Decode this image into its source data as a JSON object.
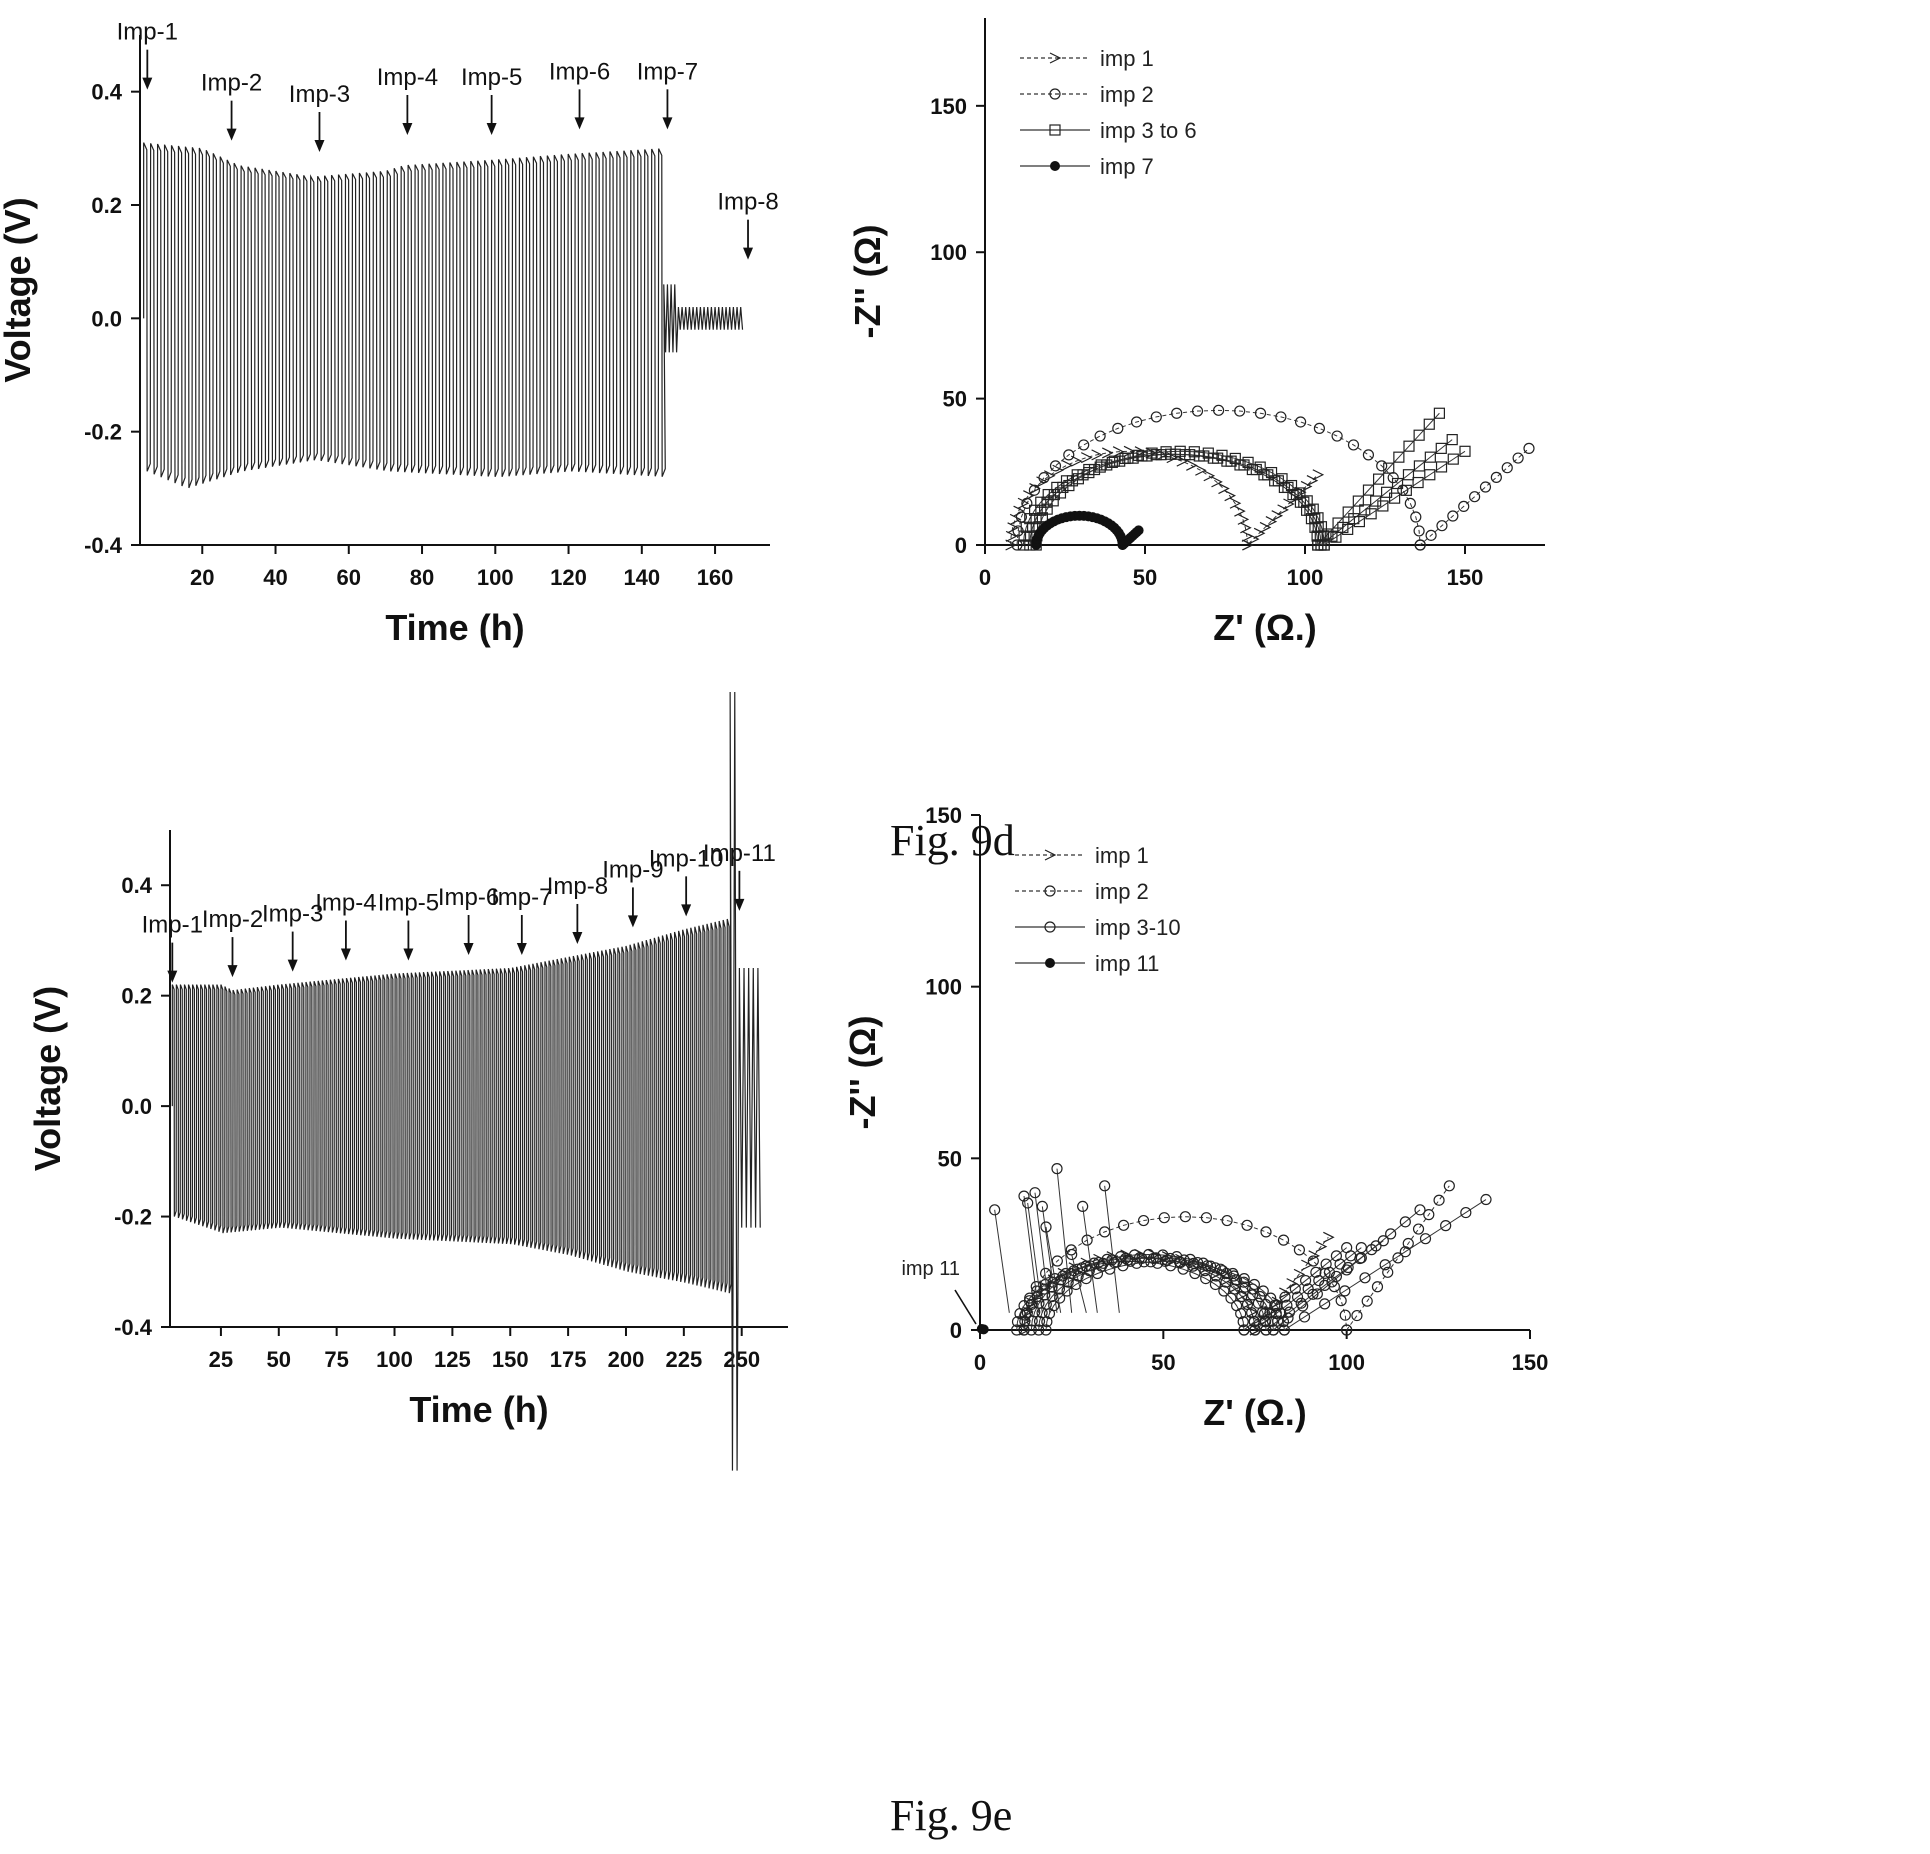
{
  "figures": [
    {
      "label": "Fig. 9d"
    },
    {
      "label": "Fig. 9e"
    }
  ],
  "chart_data": [
    {
      "id": "p9d_volt",
      "type": "line",
      "xlabel": "Time (h)",
      "ylabel": "Voltage (V)",
      "xlim": [
        3,
        175
      ],
      "ylim": [
        -0.4,
        0.5
      ],
      "xticks": [
        20,
        40,
        60,
        80,
        100,
        120,
        140,
        160
      ],
      "yticks": [
        -0.4,
        -0.2,
        0.0,
        0.2,
        0.4
      ],
      "ytick_labels": [
        "-0.4",
        "-0.2",
        "0.0",
        "0.2",
        "0.4"
      ],
      "cycling": {
        "start": 4,
        "end": 146,
        "period": 1.9,
        "upper": [
          [
            4,
            0.31
          ],
          [
            20,
            0.3
          ],
          [
            30,
            0.27
          ],
          [
            40,
            0.26
          ],
          [
            50,
            0.25
          ],
          [
            70,
            0.26
          ],
          [
            75,
            0.27
          ],
          [
            100,
            0.28
          ],
          [
            120,
            0.29
          ],
          [
            146,
            0.3
          ]
        ],
        "lower": [
          [
            4,
            -0.27
          ],
          [
            15,
            -0.3
          ],
          [
            30,
            -0.27
          ],
          [
            50,
            -0.25
          ],
          [
            70,
            -0.27
          ],
          [
            100,
            -0.28
          ],
          [
            120,
            -0.27
          ],
          [
            146,
            -0.28
          ]
        ],
        "tail": {
          "start": 146,
          "end": 168,
          "period": 1.0,
          "upper": 0.02,
          "lower": -0.02
        }
      },
      "annotations": [
        {
          "text": "Imp-1",
          "x": 5,
          "y": 0.4
        },
        {
          "text": "Imp-2",
          "x": 28,
          "y": 0.31
        },
        {
          "text": "Imp-3",
          "x": 52,
          "y": 0.29
        },
        {
          "text": "Imp-4",
          "x": 76,
          "y": 0.32
        },
        {
          "text": "Imp-5",
          "x": 99,
          "y": 0.32
        },
        {
          "text": "Imp-6",
          "x": 123,
          "y": 0.33
        },
        {
          "text": "Imp-7",
          "x": 147,
          "y": 0.33
        },
        {
          "text": "Imp-8",
          "x": 169,
          "y": 0.1
        }
      ]
    },
    {
      "id": "p9d_nyq",
      "type": "scatter",
      "xlabel": "Z' (Ω.)",
      "ylabel": "-Z'' (Ω)",
      "xlim": [
        0,
        175
      ],
      "ylim": [
        0,
        180
      ],
      "xticks": [
        0,
        50,
        100,
        150
      ],
      "yticks": [
        0,
        50,
        100,
        150
      ],
      "legend_position": "top-left",
      "series": [
        {
          "name": "imp 1",
          "marker": "arrow",
          "dash": true,
          "arcs": [
            {
              "x0": 8,
              "x1": 82,
              "h": 32,
              "n": 34
            }
          ],
          "tail": {
            "x0": 82,
            "x1": 104,
            "y1": 24,
            "n": 12
          }
        },
        {
          "name": "imp 2",
          "marker": "circle",
          "dash": true,
          "arcs": [
            {
              "x0": 10,
              "x1": 136,
              "h": 46,
              "n": 30
            }
          ],
          "tail": {
            "x0": 136,
            "x1": 170,
            "y1": 33,
            "n": 10
          }
        },
        {
          "name": "imp 3 to 6",
          "marker": "square",
          "dash": false,
          "arcs": [
            {
              "x0": 12,
              "x1": 104,
              "h": 31,
              "n": 32
            },
            {
              "x0": 14,
              "x1": 105,
              "h": 31,
              "n": 32
            },
            {
              "x0": 16,
              "x1": 106,
              "h": 32,
              "n": 32
            }
          ],
          "tails": [
            {
              "x0": 104,
              "x1": 142,
              "y1": 45,
              "n": 12
            },
            {
              "x0": 105,
              "x1": 146,
              "y1": 36,
              "n": 12
            },
            {
              "x0": 106,
              "x1": 150,
              "y1": 32,
              "n": 12
            }
          ]
        },
        {
          "name": "imp 7",
          "marker": "filled",
          "dash": false,
          "arcs": [
            {
              "x0": 16,
              "x1": 43,
              "h": 10,
              "n": 30
            }
          ],
          "tail": {
            "x0": 43,
            "x1": 48,
            "y1": 5,
            "n": 8
          }
        }
      ]
    },
    {
      "id": "p9e_volt",
      "type": "line",
      "xlabel": "Time (h)",
      "ylabel": "Voltage (V)",
      "xlim": [
        3,
        270
      ],
      "ylim": [
        -0.4,
        0.5
      ],
      "xticks": [
        25,
        50,
        75,
        100,
        125,
        150,
        175,
        200,
        225,
        250
      ],
      "yticks": [
        -0.4,
        -0.2,
        0.0,
        0.2,
        0.4
      ],
      "ytick_labels": [
        "-0.4",
        "-0.2",
        "0.0",
        "0.2",
        "0.4"
      ],
      "cycling": {
        "start": 4,
        "end": 245,
        "period": 1.75,
        "upper": [
          [
            4,
            0.22
          ],
          [
            25,
            0.22
          ],
          [
            30,
            0.21
          ],
          [
            50,
            0.22
          ],
          [
            75,
            0.23
          ],
          [
            100,
            0.24
          ],
          [
            150,
            0.25
          ],
          [
            175,
            0.27
          ],
          [
            200,
            0.29
          ],
          [
            225,
            0.32
          ],
          [
            245,
            0.34
          ]
        ],
        "lower": [
          [
            4,
            -0.2
          ],
          [
            25,
            -0.23
          ],
          [
            50,
            -0.22
          ],
          [
            100,
            -0.24
          ],
          [
            150,
            -0.25
          ],
          [
            175,
            -0.27
          ],
          [
            200,
            -0.3
          ],
          [
            225,
            -0.32
          ],
          [
            245,
            -0.34
          ]
        ],
        "tail": {
          "start": 245,
          "end": 258,
          "period": 2.0,
          "upper": 0.25,
          "lower": -0.22
        }
      },
      "annotations": [
        {
          "text": "Imp-1",
          "x": 4,
          "y": 0.22
        },
        {
          "text": "Imp-2",
          "x": 30,
          "y": 0.23
        },
        {
          "text": "Imp-3",
          "x": 56,
          "y": 0.24
        },
        {
          "text": "Imp-4",
          "x": 79,
          "y": 0.26
        },
        {
          "text": "Imp-5",
          "x": 106,
          "y": 0.26
        },
        {
          "text": "Imp-6",
          "x": 132,
          "y": 0.27
        },
        {
          "text": "Imp-7",
          "x": 155,
          "y": 0.27
        },
        {
          "text": "Imp-8",
          "x": 179,
          "y": 0.29
        },
        {
          "text": "Imp-9",
          "x": 203,
          "y": 0.32
        },
        {
          "text": "Imp-10",
          "x": 226,
          "y": 0.34
        },
        {
          "text": "Imp-11",
          "x": 249,
          "y": 0.35
        }
      ]
    },
    {
      "id": "p9e_nyq",
      "type": "scatter",
      "xlabel": "Z' (Ω.)",
      "ylabel": "-Z'' (Ω)",
      "xlim": [
        0,
        150
      ],
      "ylim": [
        0,
        150
      ],
      "xticks": [
        0,
        50,
        100,
        150
      ],
      "yticks": [
        0,
        50,
        100,
        150
      ],
      "legend_position": "top-left",
      "series": [
        {
          "name": "imp 1",
          "marker": "arrow",
          "dash": true,
          "arcs": [
            {
              "x0": 12,
              "x1": 75,
              "h": 22,
              "n": 26
            }
          ],
          "tail": {
            "x0": 75,
            "x1": 95,
            "y1": 27,
            "n": 10
          }
        },
        {
          "name": "imp 2",
          "marker": "circle",
          "dash": true,
          "arcs": [
            {
              "x0": 12,
              "x1": 100,
              "h": 33,
              "n": 24
            }
          ],
          "tail": {
            "x0": 100,
            "x1": 128,
            "y1": 42,
            "n": 10
          }
        },
        {
          "name": "imp 3-10",
          "marker": "circle",
          "dash": false,
          "arcs": [
            {
              "x0": 10,
              "x1": 72,
              "h": 20,
              "n": 26
            },
            {
              "x0": 12,
              "x1": 75,
              "h": 21,
              "n": 26
            },
            {
              "x0": 14,
              "x1": 78,
              "h": 22,
              "n": 26
            },
            {
              "x0": 16,
              "x1": 80,
              "h": 21,
              "n": 26
            },
            {
              "x0": 18,
              "x1": 83,
              "h": 20,
              "n": 26
            }
          ],
          "tails": [
            {
              "x0": 72,
              "x1": 100,
              "y1": 24,
              "n": 10
            },
            {
              "x0": 75,
              "x1": 104,
              "y1": 24,
              "n": 10
            },
            {
              "x0": 78,
              "x1": 110,
              "y1": 26,
              "n": 10
            },
            {
              "x0": 80,
              "x1": 120,
              "y1": 35,
              "n": 10
            },
            {
              "x0": 83,
              "x1": 138,
              "y1": 38,
              "n": 10
            }
          ],
          "spikes": [
            [
              4,
              35
            ],
            [
              12,
              39
            ],
            [
              13,
              37
            ],
            [
              15,
              40
            ],
            [
              17,
              36
            ],
            [
              18,
              30
            ],
            [
              21,
              47
            ],
            [
              28,
              36
            ],
            [
              34,
              42
            ],
            [
              25,
              22
            ]
          ]
        },
        {
          "name": "imp 11",
          "marker": "filled",
          "dash": false,
          "points": [
            [
              0.5,
              0.3
            ],
            [
              1,
              0.2
            ]
          ]
        }
      ],
      "annotations": [
        {
          "text": "imp 11",
          "x": 0,
          "y": 0
        }
      ]
    }
  ]
}
